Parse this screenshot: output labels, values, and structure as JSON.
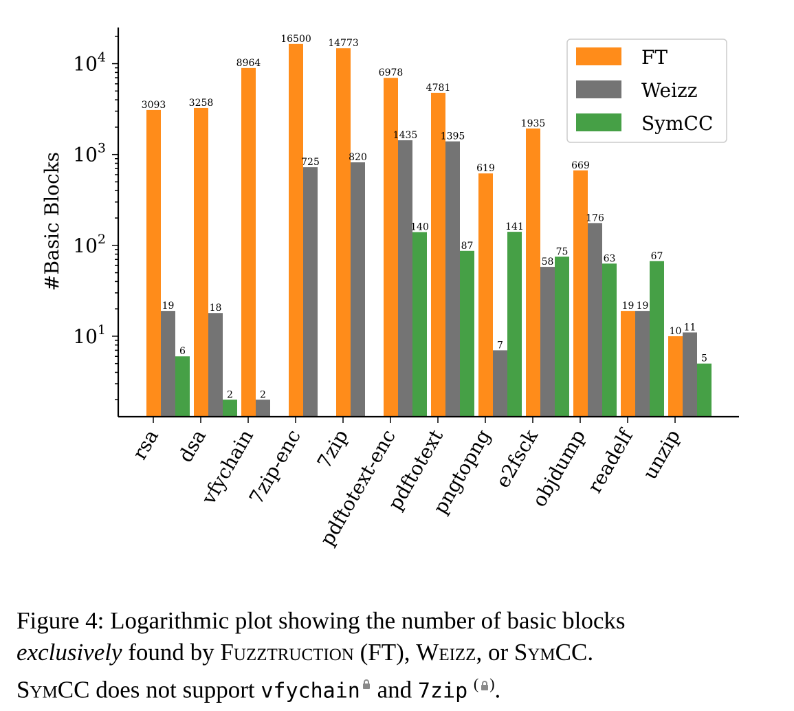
{
  "chart_data": {
    "type": "bar",
    "ylabel": "#Basic Blocks",
    "yscale": "log",
    "ylim": [
      1.3,
      25000
    ],
    "yticks": [
      10,
      100,
      1000,
      10000
    ],
    "ytick_labels": [
      {
        "base": "10",
        "exp": "1"
      },
      {
        "base": "10",
        "exp": "2"
      },
      {
        "base": "10",
        "exp": "3"
      },
      {
        "base": "10",
        "exp": "4"
      }
    ],
    "categories": [
      "rsa",
      "dsa",
      "vfychain",
      "7zip-enc",
      "7zip",
      "pdftotext-enc",
      "pdftotext",
      "pngtopng",
      "e2fsck",
      "objdump",
      "readelf",
      "unzip"
    ],
    "series": [
      {
        "name": "FT",
        "color": "#ff8c1a",
        "values": [
          3093,
          3258,
          8964,
          16500,
          14773,
          6978,
          4781,
          619,
          1935,
          669,
          19,
          10
        ]
      },
      {
        "name": "Weizz",
        "color": "#747474",
        "values": [
          19,
          18,
          2,
          725,
          820,
          1435,
          1395,
          7,
          58,
          176,
          19,
          11
        ]
      },
      {
        "name": "SymCC",
        "color": "#46a046",
        "values": [
          6,
          2,
          null,
          null,
          null,
          140,
          87,
          141,
          75,
          63,
          67,
          5
        ]
      }
    ],
    "legend_position": "top-right",
    "grid": false
  },
  "caption": {
    "prefix": "Figure 4:  Logarithmic plot showing the number of basic blocks",
    "emph": "exclusively",
    "found_by": " found by ",
    "ft_name": "Fuzztruction",
    "ft_abbr": " (FT), ",
    "weizz": "Weizz",
    "or_text": ", or ",
    "symcc": "SymCC",
    "end": ".",
    "symcc2": "SymCC",
    "support": " does not support ",
    "code1": "vfychain",
    "and_text": " and ",
    "code2": "7zip",
    "lock_paren": "(🔒)",
    "final": "."
  }
}
